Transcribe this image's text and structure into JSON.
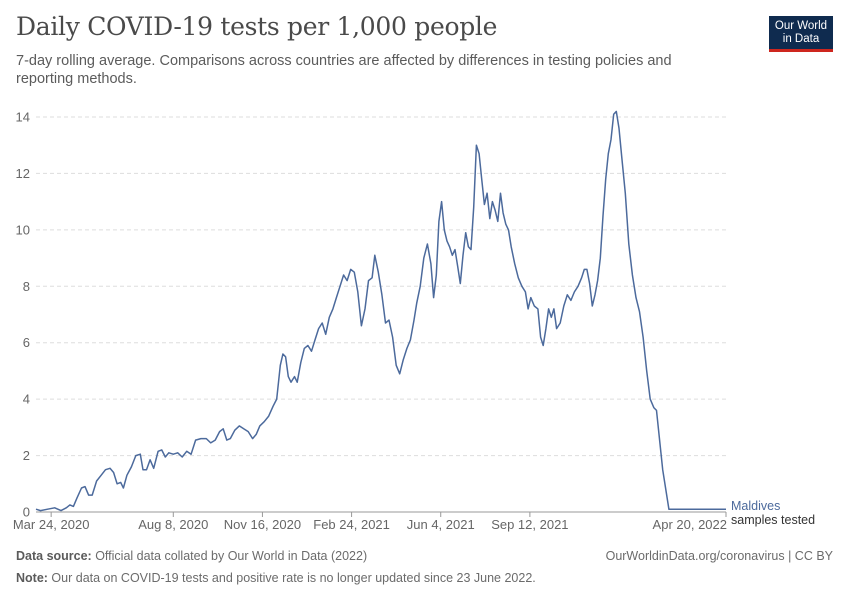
{
  "header": {
    "title": "Daily COVID-19 tests per 1,000 people",
    "subtitle": "7-day rolling average. Comparisons across countries are affected by differences in testing policies and reporting methods."
  },
  "logo": {
    "line1": "Our World",
    "line2": "in Data"
  },
  "footer": {
    "source_label": "Data source:",
    "source_text": " Official data collated by Our World in Data (2022)",
    "note_label": "Note:",
    "note_text": " Our data on COVID-19 tests and positive rate is no longer updated since 23 June 2022.",
    "url": "OurWorldinData.org/coronavirus | CC BY"
  },
  "colors": {
    "series": "#4c6a9c",
    "grid": "#dddddd",
    "axis": "#999999"
  },
  "chart_data": {
    "type": "line",
    "title": "Daily COVID-19 tests per 1,000 people",
    "subtitle": "7-day rolling average. Comparisons across countries are affected by differences in testing policies and reporting methods.",
    "xlabel": "",
    "ylabel": "",
    "ylim": [
      0,
      14
    ],
    "xlim": [
      "2020-03-07",
      "2022-04-20"
    ],
    "grid": "horizontal dashed",
    "y_ticks": [
      0,
      2,
      4,
      6,
      8,
      10,
      12,
      14
    ],
    "x_ticks": [
      {
        "date": "2020-03-24",
        "label": "Mar 24, 2020"
      },
      {
        "date": "2020-08-08",
        "label": "Aug 8, 2020"
      },
      {
        "date": "2020-11-16",
        "label": "Nov 16, 2020"
      },
      {
        "date": "2021-02-24",
        "label": "Feb 24, 2021"
      },
      {
        "date": "2021-06-04",
        "label": "Jun 4, 2021"
      },
      {
        "date": "2021-09-12",
        "label": "Sep 12, 2021"
      },
      {
        "date": "2022-04-20",
        "label": "Apr 20, 2022"
      }
    ],
    "series": [
      {
        "name": "Maldives",
        "unit_label": "samples tested",
        "points": [
          [
            "2020-03-07",
            0.1
          ],
          [
            "2020-03-12",
            0.05
          ],
          [
            "2020-03-20",
            0.1
          ],
          [
            "2020-03-28",
            0.15
          ],
          [
            "2020-04-04",
            0.05
          ],
          [
            "2020-04-10",
            0.15
          ],
          [
            "2020-04-14",
            0.25
          ],
          [
            "2020-04-18",
            0.2
          ],
          [
            "2020-04-22",
            0.5
          ],
          [
            "2020-04-27",
            0.85
          ],
          [
            "2020-05-01",
            0.9
          ],
          [
            "2020-05-05",
            0.6
          ],
          [
            "2020-05-09",
            0.6
          ],
          [
            "2020-05-14",
            1.1
          ],
          [
            "2020-05-19",
            1.3
          ],
          [
            "2020-05-24",
            1.5
          ],
          [
            "2020-05-29",
            1.55
          ],
          [
            "2020-06-02",
            1.4
          ],
          [
            "2020-06-06",
            1.0
          ],
          [
            "2020-06-10",
            1.05
          ],
          [
            "2020-06-13",
            0.85
          ],
          [
            "2020-06-17",
            1.3
          ],
          [
            "2020-06-22",
            1.6
          ],
          [
            "2020-06-27",
            2.0
          ],
          [
            "2020-07-02",
            2.05
          ],
          [
            "2020-07-05",
            1.5
          ],
          [
            "2020-07-09",
            1.5
          ],
          [
            "2020-07-13",
            1.85
          ],
          [
            "2020-07-17",
            1.55
          ],
          [
            "2020-07-22",
            2.15
          ],
          [
            "2020-07-26",
            2.2
          ],
          [
            "2020-07-30",
            1.95
          ],
          [
            "2020-08-03",
            2.1
          ],
          [
            "2020-08-08",
            2.05
          ],
          [
            "2020-08-13",
            2.1
          ],
          [
            "2020-08-18",
            1.95
          ],
          [
            "2020-08-23",
            2.15
          ],
          [
            "2020-08-28",
            2.05
          ],
          [
            "2020-09-02",
            2.55
          ],
          [
            "2020-09-08",
            2.6
          ],
          [
            "2020-09-14",
            2.6
          ],
          [
            "2020-09-19",
            2.45
          ],
          [
            "2020-09-24",
            2.55
          ],
          [
            "2020-09-29",
            2.85
          ],
          [
            "2020-10-03",
            2.95
          ],
          [
            "2020-10-07",
            2.55
          ],
          [
            "2020-10-11",
            2.6
          ],
          [
            "2020-10-16",
            2.9
          ],
          [
            "2020-10-21",
            3.05
          ],
          [
            "2020-10-26",
            2.95
          ],
          [
            "2020-10-31",
            2.85
          ],
          [
            "2020-11-05",
            2.6
          ],
          [
            "2020-11-09",
            2.75
          ],
          [
            "2020-11-13",
            3.05
          ],
          [
            "2020-11-18",
            3.2
          ],
          [
            "2020-11-23",
            3.4
          ],
          [
            "2020-11-28",
            3.75
          ],
          [
            "2020-12-02",
            4.0
          ],
          [
            "2020-12-06",
            5.2
          ],
          [
            "2020-12-09",
            5.6
          ],
          [
            "2020-12-12",
            5.5
          ],
          [
            "2020-12-15",
            4.8
          ],
          [
            "2020-12-18",
            4.6
          ],
          [
            "2020-12-22",
            4.8
          ],
          [
            "2020-12-25",
            4.6
          ],
          [
            "2020-12-29",
            5.3
          ],
          [
            "2021-01-02",
            5.8
          ],
          [
            "2021-01-06",
            5.9
          ],
          [
            "2021-01-10",
            5.7
          ],
          [
            "2021-01-14",
            6.1
          ],
          [
            "2021-01-18",
            6.5
          ],
          [
            "2021-01-22",
            6.7
          ],
          [
            "2021-01-26",
            6.3
          ],
          [
            "2021-01-30",
            6.9
          ],
          [
            "2021-02-03",
            7.2
          ],
          [
            "2021-02-07",
            7.6
          ],
          [
            "2021-02-11",
            8.0
          ],
          [
            "2021-02-15",
            8.4
          ],
          [
            "2021-02-19",
            8.2
          ],
          [
            "2021-02-23",
            8.6
          ],
          [
            "2021-02-27",
            8.5
          ],
          [
            "2021-03-03",
            7.8
          ],
          [
            "2021-03-07",
            6.6
          ],
          [
            "2021-03-11",
            7.2
          ],
          [
            "2021-03-15",
            8.2
          ],
          [
            "2021-03-19",
            8.3
          ],
          [
            "2021-03-22",
            9.1
          ],
          [
            "2021-03-26",
            8.5
          ],
          [
            "2021-03-30",
            7.7
          ],
          [
            "2021-04-03",
            6.7
          ],
          [
            "2021-04-07",
            6.8
          ],
          [
            "2021-04-11",
            6.2
          ],
          [
            "2021-04-15",
            5.2
          ],
          [
            "2021-04-19",
            4.9
          ],
          [
            "2021-04-23",
            5.4
          ],
          [
            "2021-04-27",
            5.8
          ],
          [
            "2021-05-01",
            6.1
          ],
          [
            "2021-05-05",
            6.8
          ],
          [
            "2021-05-08",
            7.4
          ],
          [
            "2021-05-12",
            8.0
          ],
          [
            "2021-05-16",
            9.0
          ],
          [
            "2021-05-20",
            9.5
          ],
          [
            "2021-05-24",
            8.8
          ],
          [
            "2021-05-27",
            7.6
          ],
          [
            "2021-05-30",
            8.4
          ],
          [
            "2021-06-02",
            10.3
          ],
          [
            "2021-06-05",
            11.0
          ],
          [
            "2021-06-08",
            10.0
          ],
          [
            "2021-06-11",
            9.6
          ],
          [
            "2021-06-14",
            9.4
          ],
          [
            "2021-06-17",
            9.1
          ],
          [
            "2021-06-20",
            9.3
          ],
          [
            "2021-06-23",
            8.7
          ],
          [
            "2021-06-26",
            8.1
          ],
          [
            "2021-06-29",
            9.1
          ],
          [
            "2021-07-02",
            9.9
          ],
          [
            "2021-07-05",
            9.4
          ],
          [
            "2021-07-08",
            9.3
          ],
          [
            "2021-07-11",
            10.8
          ],
          [
            "2021-07-14",
            13.0
          ],
          [
            "2021-07-17",
            12.7
          ],
          [
            "2021-07-20",
            11.8
          ],
          [
            "2021-07-23",
            10.9
          ],
          [
            "2021-07-26",
            11.3
          ],
          [
            "2021-07-29",
            10.4
          ],
          [
            "2021-08-01",
            11.0
          ],
          [
            "2021-08-04",
            10.7
          ],
          [
            "2021-08-07",
            10.3
          ],
          [
            "2021-08-10",
            11.3
          ],
          [
            "2021-08-13",
            10.6
          ],
          [
            "2021-08-16",
            10.2
          ],
          [
            "2021-08-19",
            10.0
          ],
          [
            "2021-08-22",
            9.4
          ],
          [
            "2021-08-26",
            8.8
          ],
          [
            "2021-08-30",
            8.3
          ],
          [
            "2021-09-03",
            8.0
          ],
          [
            "2021-09-07",
            7.8
          ],
          [
            "2021-09-10",
            7.2
          ],
          [
            "2021-09-13",
            7.6
          ],
          [
            "2021-09-17",
            7.3
          ],
          [
            "2021-09-21",
            7.2
          ],
          [
            "2021-09-24",
            6.2
          ],
          [
            "2021-09-27",
            5.9
          ],
          [
            "2021-09-30",
            6.5
          ],
          [
            "2021-10-03",
            7.2
          ],
          [
            "2021-10-06",
            6.9
          ],
          [
            "2021-10-09",
            7.2
          ],
          [
            "2021-10-12",
            6.5
          ],
          [
            "2021-10-16",
            6.7
          ],
          [
            "2021-10-20",
            7.3
          ],
          [
            "2021-10-24",
            7.7
          ],
          [
            "2021-10-28",
            7.5
          ],
          [
            "2021-11-01",
            7.8
          ],
          [
            "2021-11-05",
            8.0
          ],
          [
            "2021-11-09",
            8.3
          ],
          [
            "2021-11-12",
            8.6
          ],
          [
            "2021-11-15",
            8.6
          ],
          [
            "2021-11-18",
            8.1
          ],
          [
            "2021-11-21",
            7.3
          ],
          [
            "2021-11-24",
            7.7
          ],
          [
            "2021-11-27",
            8.2
          ],
          [
            "2021-11-30",
            9.0
          ],
          [
            "2021-12-03",
            10.5
          ],
          [
            "2021-12-06",
            11.8
          ],
          [
            "2021-12-09",
            12.7
          ],
          [
            "2021-12-12",
            13.2
          ],
          [
            "2021-12-15",
            14.1
          ],
          [
            "2021-12-18",
            14.2
          ],
          [
            "2021-12-21",
            13.6
          ],
          [
            "2021-12-24",
            12.6
          ],
          [
            "2021-12-28",
            11.3
          ],
          [
            "2022-01-01",
            9.5
          ],
          [
            "2022-01-05",
            8.4
          ],
          [
            "2022-01-09",
            7.6
          ],
          [
            "2022-01-13",
            7.1
          ],
          [
            "2022-01-17",
            6.2
          ],
          [
            "2022-01-21",
            5.0
          ],
          [
            "2022-01-25",
            4.0
          ],
          [
            "2022-01-29",
            3.7
          ],
          [
            "2022-02-01",
            3.6
          ],
          [
            "2022-02-08",
            1.5
          ],
          [
            "2022-02-15",
            0.1
          ],
          [
            "2022-04-20",
            0.1
          ]
        ]
      }
    ]
  }
}
